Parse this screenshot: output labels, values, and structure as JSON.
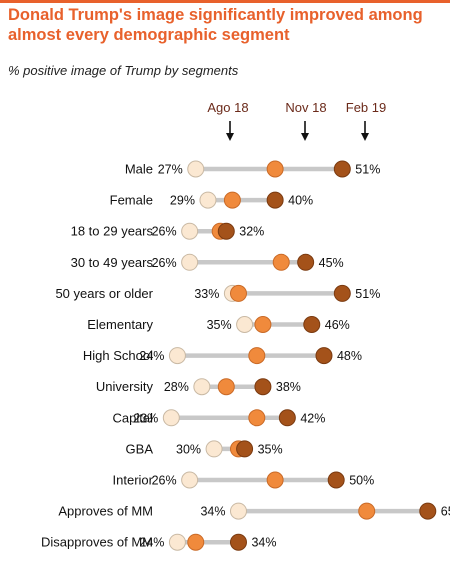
{
  "title": "Donald Trump's image significantly improved among almost every demographic segment",
  "subtitle": "% positive image of Trump by segments",
  "colors": {
    "accent": "#e8612c",
    "ago18": "#fbe8d2",
    "nov18": "#f08a3c",
    "feb19": "#a4521a",
    "bar": "#c8c8c8",
    "header_text": "#6b2a1a"
  },
  "chart_data": {
    "type": "dot-plot",
    "series_labels": [
      "Ago 18",
      "Nov 18",
      "Feb 19"
    ],
    "x_range": [
      20,
      67
    ],
    "rows": [
      {
        "label": "Male",
        "ago18": 27,
        "nov18": 40,
        "feb19": 51
      },
      {
        "label": "Female",
        "ago18": 29,
        "nov18": 33,
        "feb19": 40
      },
      {
        "label": "18 to 29 years",
        "ago18": 26,
        "nov18": 31,
        "feb19": 32
      },
      {
        "label": "30 to 49 years",
        "ago18": 26,
        "nov18": 41,
        "feb19": 45
      },
      {
        "label": "50 years or older",
        "ago18": 33,
        "nov18": 34,
        "feb19": 51
      },
      {
        "label": "Elementary",
        "ago18": 35,
        "nov18": 38,
        "feb19": 46
      },
      {
        "label": "High School",
        "ago18": 24,
        "nov18": 37,
        "feb19": 48
      },
      {
        "label": "University",
        "ago18": 28,
        "nov18": 32,
        "feb19": 38
      },
      {
        "label": "Capital",
        "ago18": 23,
        "nov18": 37,
        "feb19": 42
      },
      {
        "label": "GBA",
        "ago18": 30,
        "nov18": 34,
        "feb19": 35
      },
      {
        "label": "Interior",
        "ago18": 26,
        "nov18": 40,
        "feb19": 50
      },
      {
        "label": "Approves of MM",
        "ago18": 34,
        "nov18": 55,
        "feb19": 65
      },
      {
        "label": "Disapproves of MM",
        "ago18": 24,
        "nov18": 27,
        "feb19": 34
      }
    ]
  }
}
